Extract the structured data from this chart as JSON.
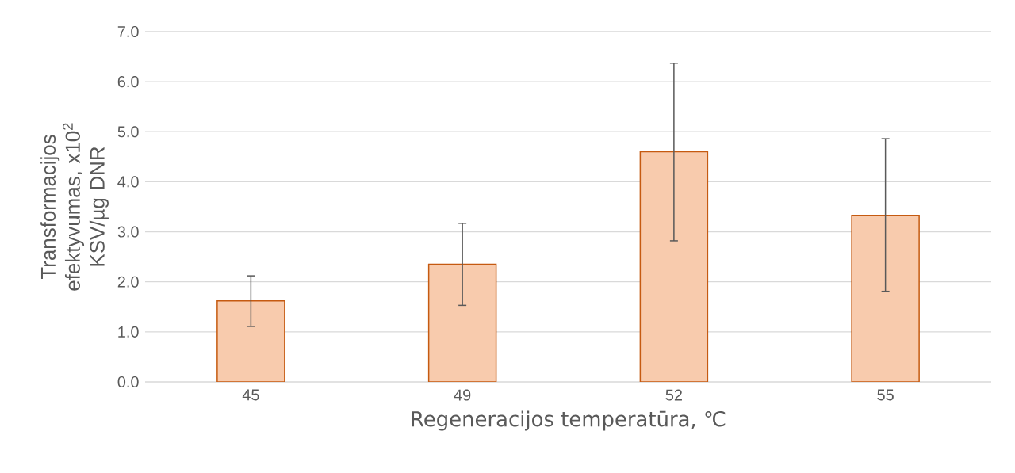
{
  "chart_data": {
    "type": "bar",
    "xlabel": "Regeneracijos temperatūra, ℃",
    "ylabel": "Transformacijos efektyvumas, x10$^{2}$ KSV/µg DNR",
    "categories": [
      "45",
      "49",
      "52",
      "55"
    ],
    "values": [
      1.62,
      2.35,
      4.6,
      3.33
    ],
    "errors": [
      [
        1.11,
        2.12
      ],
      [
        1.53,
        3.17
      ],
      [
        2.82,
        6.37
      ],
      [
        1.81,
        4.86
      ]
    ],
    "color": "#f8cbad",
    "ylim": [
      0,
      7
    ],
    "yticks": [
      {
        "value": 0,
        "label": "0.0"
      },
      {
        "value": 1,
        "label": "1.0"
      },
      {
        "value": 2,
        "label": "2.0"
      },
      {
        "value": 3,
        "label": "3.0"
      },
      {
        "value": 4,
        "label": "4.0"
      },
      {
        "value": 5,
        "label": "5.0"
      },
      {
        "value": 6,
        "label": "6.0"
      },
      {
        "value": 7,
        "label": "7.0"
      }
    ],
    "grid": "y"
  }
}
